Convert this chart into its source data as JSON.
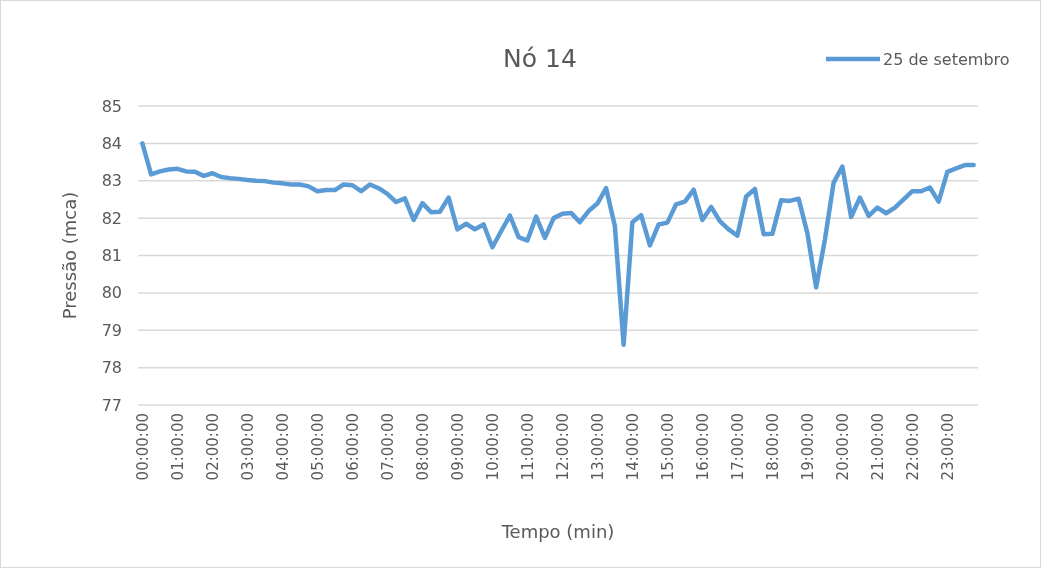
{
  "chart_data": {
    "type": "line",
    "title": "Nó 14",
    "xlabel": "Tempo (min)",
    "ylabel": "Pressão (mca)",
    "categories": [
      "00:00:00",
      null,
      null,
      null,
      "01:00:00",
      null,
      null,
      null,
      "02:00:00",
      null,
      null,
      null,
      "03:00:00",
      null,
      null,
      null,
      "04:00:00",
      null,
      null,
      null,
      "05:00:00",
      null,
      null,
      null,
      "06:00:00",
      null,
      null,
      null,
      "07:00:00",
      null,
      null,
      null,
      "08:00:00",
      null,
      null,
      null,
      "09:00:00",
      null,
      null,
      null,
      "10:00:00",
      null,
      null,
      null,
      "11:00:00",
      null,
      null,
      null,
      "12:00:00",
      null,
      null,
      null,
      "13:00:00",
      null,
      null,
      null,
      "14:00:00",
      null,
      null,
      null,
      "15:00:00",
      null,
      null,
      null,
      "16:00:00",
      null,
      null,
      null,
      "17:00:00",
      null,
      null,
      null,
      "18:00:00",
      null,
      null,
      null,
      "19:00:00",
      null,
      null,
      null,
      "20:00:00",
      null,
      null,
      null,
      "21:00:00",
      null,
      null,
      null,
      "22:00:00",
      null,
      null,
      null,
      "23:00:00",
      null,
      null,
      null
    ],
    "series": [
      {
        "name": "25 de setembro",
        "color": "#5b9bd5",
        "values": [
          84.0,
          83.17,
          83.25,
          83.3,
          83.32,
          83.25,
          83.24,
          83.13,
          83.2,
          83.1,
          83.07,
          83.05,
          83.02,
          83.0,
          82.99,
          82.95,
          82.93,
          82.9,
          82.9,
          82.85,
          82.72,
          82.75,
          82.75,
          82.9,
          82.88,
          82.72,
          82.9,
          82.8,
          82.65,
          82.43,
          82.53,
          81.95,
          82.4,
          82.16,
          82.17,
          82.55,
          81.7,
          81.85,
          81.7,
          81.83,
          81.22,
          81.65,
          82.07,
          81.49,
          81.4,
          82.04,
          81.47,
          82.0,
          82.12,
          82.14,
          81.89,
          82.19,
          82.39,
          82.8,
          81.79,
          78.61,
          81.89,
          82.08,
          81.27,
          81.83,
          81.88,
          82.37,
          82.44,
          82.76,
          81.95,
          82.3,
          81.92,
          81.7,
          81.53,
          82.58,
          82.78,
          81.57,
          81.58,
          82.48,
          82.46,
          82.52,
          81.6,
          80.15,
          81.42,
          82.95,
          83.38,
          82.03,
          82.55,
          82.06,
          82.28,
          82.13,
          82.28,
          82.5,
          82.72,
          82.72,
          82.82,
          82.44,
          83.24,
          83.33,
          83.42,
          83.42
        ]
      }
    ],
    "ylim": [
      77,
      85
    ],
    "yticks": [
      77,
      78,
      79,
      80,
      81,
      82,
      83,
      84,
      85
    ],
    "grid": "y",
    "legend": "top right",
    "marker": "none",
    "line_style": "solid"
  }
}
